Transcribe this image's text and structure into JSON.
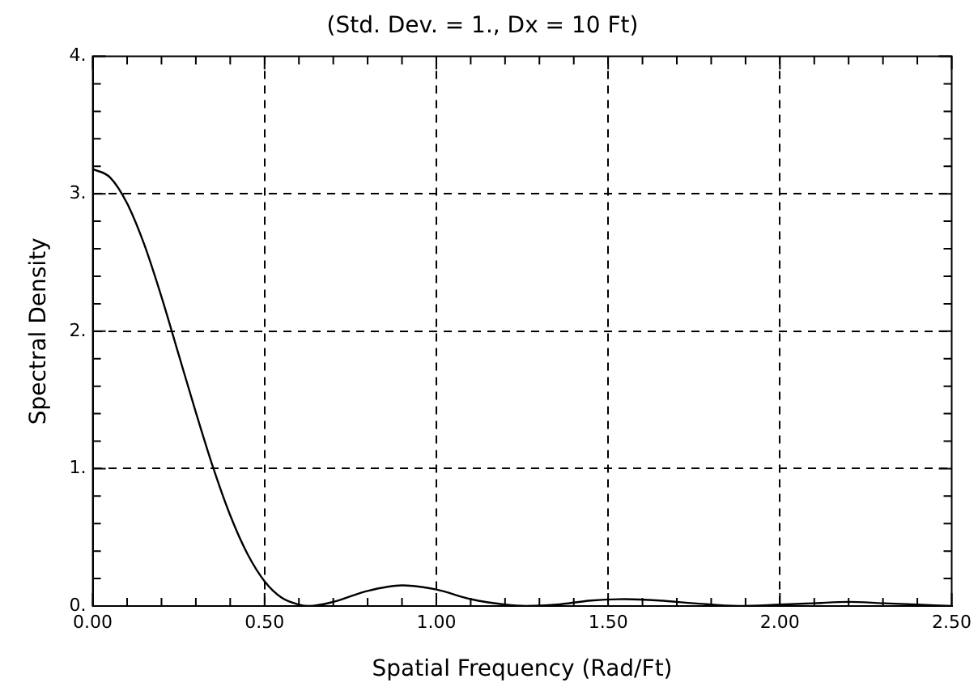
{
  "chart_data": {
    "type": "line",
    "title": "(Std. Dev. = 1., Dx = 10 Ft)",
    "xlabel": "Spatial Frequency (Rad/Ft)",
    "ylabel": "Spectral Density",
    "x": [
      0,
      0.05,
      0.1,
      0.15,
      0.2,
      0.25,
      0.3,
      0.35,
      0.4,
      0.45,
      0.5,
      0.55,
      0.6,
      0.63,
      0.7,
      0.8,
      0.9,
      1.0,
      1.1,
      1.2,
      1.26,
      1.35,
      1.45,
      1.55,
      1.65,
      1.75,
      1.88,
      2.0,
      2.1,
      2.2,
      2.3,
      2.4,
      2.5
    ],
    "series": [
      {
        "color": "#000000",
        "values": [
          3.18,
          3.12,
          2.93,
          2.63,
          2.25,
          1.83,
          1.41,
          1.01,
          0.66,
          0.38,
          0.18,
          0.06,
          0.01,
          0,
          0.03,
          0.11,
          0.15,
          0.12,
          0.05,
          0.01,
          0,
          0.01,
          0.04,
          0.05,
          0.04,
          0.02,
          0,
          0.01,
          0.02,
          0.03,
          0.02,
          0.01,
          0
        ]
      }
    ],
    "xlim": [
      0,
      2.5
    ],
    "ylim": [
      0,
      4
    ],
    "xticks": [
      {
        "value": 0,
        "label": "0.00"
      },
      {
        "value": 0.1,
        "label": null
      },
      {
        "value": 0.2,
        "label": null
      },
      {
        "value": 0.3,
        "label": null
      },
      {
        "value": 0.4,
        "label": null
      },
      {
        "value": 0.5,
        "label": "0.50"
      },
      {
        "value": 0.6,
        "label": null
      },
      {
        "value": 0.7,
        "label": null
      },
      {
        "value": 0.8,
        "label": null
      },
      {
        "value": 0.9,
        "label": null
      },
      {
        "value": 1,
        "label": "1.00"
      },
      {
        "value": 1.1,
        "label": null
      },
      {
        "value": 1.2,
        "label": null
      },
      {
        "value": 1.3,
        "label": null
      },
      {
        "value": 1.4,
        "label": null
      },
      {
        "value": 1.5,
        "label": "1.50"
      },
      {
        "value": 1.6,
        "label": null
      },
      {
        "value": 1.7,
        "label": null
      },
      {
        "value": 1.8,
        "label": null
      },
      {
        "value": 1.9,
        "label": null
      },
      {
        "value": 2,
        "label": "2.00"
      },
      {
        "value": 2.1,
        "label": null
      },
      {
        "value": 2.2,
        "label": null
      },
      {
        "value": 2.3,
        "label": null
      },
      {
        "value": 2.4,
        "label": null
      },
      {
        "value": 2.5,
        "label": "2.50"
      }
    ],
    "yticks": [
      {
        "value": 0,
        "label": "0."
      },
      {
        "value": 0.2,
        "label": null
      },
      {
        "value": 0.4,
        "label": null
      },
      {
        "value": 0.6,
        "label": null
      },
      {
        "value": 0.8,
        "label": null
      },
      {
        "value": 1,
        "label": "1."
      },
      {
        "value": 1.2,
        "label": null
      },
      {
        "value": 1.4,
        "label": null
      },
      {
        "value": 1.6,
        "label": null
      },
      {
        "value": 1.8,
        "label": null
      },
      {
        "value": 2,
        "label": "2."
      },
      {
        "value": 2.2,
        "label": null
      },
      {
        "value": 2.4,
        "label": null
      },
      {
        "value": 2.6,
        "label": null
      },
      {
        "value": 2.8,
        "label": null
      },
      {
        "value": 3,
        "label": "3."
      },
      {
        "value": 3.2,
        "label": null
      },
      {
        "value": 3.4,
        "label": null
      },
      {
        "value": 3.6,
        "label": null
      },
      {
        "value": 3.8,
        "label": null
      },
      {
        "value": 4,
        "label": "4."
      }
    ],
    "grid": true,
    "legend": false,
    "marker": "none",
    "line_style": "solid"
  }
}
